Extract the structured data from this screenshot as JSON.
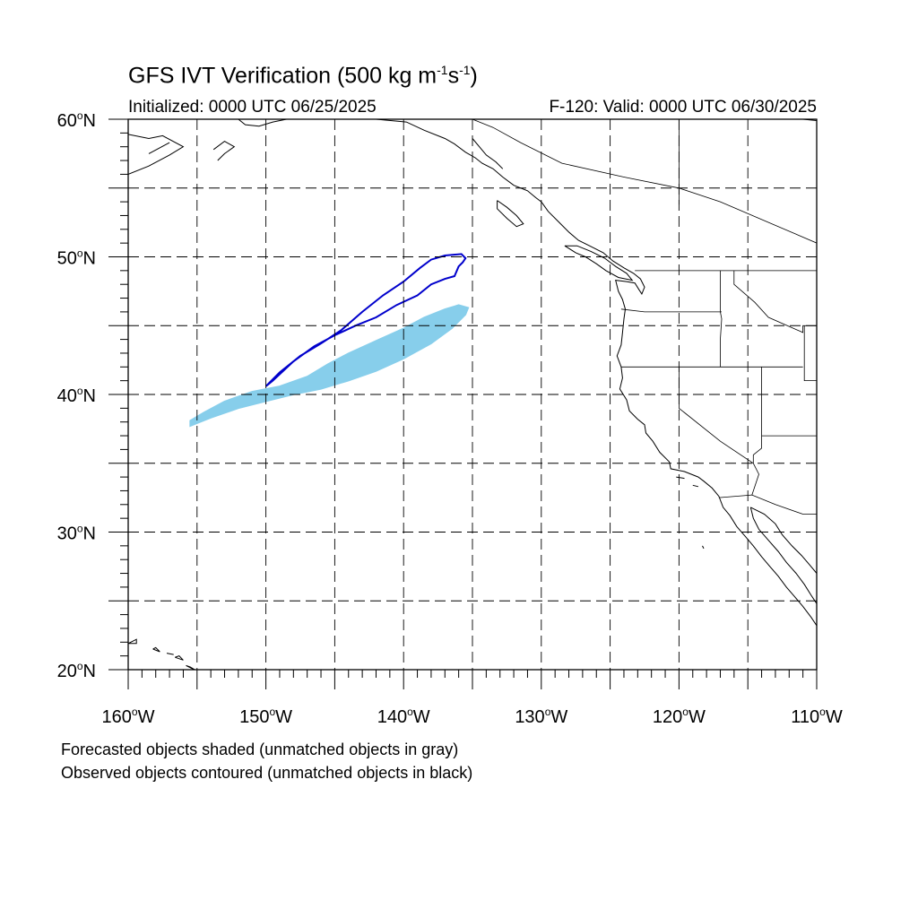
{
  "header": {
    "title_main": "GFS IVT Verification (500 kg m",
    "title_sup1": "-1",
    "title_mid": "s",
    "title_sup2": "-1",
    "title_end": ")",
    "initialized": "Initialized: 0000 UTC 06/25/2025",
    "valid": "F-120: Valid: 0000 UTC 06/30/2025"
  },
  "map": {
    "lon_range": [
      -160,
      -110
    ],
    "lat_range": [
      20,
      60
    ],
    "grid_interval_deg": 5,
    "lat_labels": [
      {
        "lat": 60,
        "text": "60",
        "hemi": "N"
      },
      {
        "lat": 50,
        "text": "50",
        "hemi": "N"
      },
      {
        "lat": 40,
        "text": "40",
        "hemi": "N"
      },
      {
        "lat": 30,
        "text": "30",
        "hemi": "N"
      },
      {
        "lat": 20,
        "text": "20",
        "hemi": "N"
      }
    ],
    "lon_labels": [
      {
        "lon": -160,
        "text": "160",
        "hemi": "W"
      },
      {
        "lon": -150,
        "text": "150",
        "hemi": "W"
      },
      {
        "lon": -140,
        "text": "140",
        "hemi": "W"
      },
      {
        "lon": -130,
        "text": "130",
        "hemi": "W"
      },
      {
        "lon": -120,
        "text": "120",
        "hemi": "W"
      },
      {
        "lon": -110,
        "text": "110",
        "hemi": "W"
      }
    ],
    "colors": {
      "forecast_shade": "#87ceeb",
      "observed_contour": "#0000cc",
      "coast": "#000000",
      "grid": "#000000"
    },
    "forecast_object": [
      [
        -155.5,
        37.7
      ],
      [
        -155.0,
        37.9
      ],
      [
        -154.0,
        38.3
      ],
      [
        -152.0,
        39.0
      ],
      [
        -150.0,
        39.5
      ],
      [
        -148.0,
        40.0
      ],
      [
        -146.0,
        40.4
      ],
      [
        -144.0,
        41.0
      ],
      [
        -142.0,
        41.7
      ],
      [
        -140.0,
        42.6
      ],
      [
        -138.0,
        43.7
      ],
      [
        -136.5,
        44.8
      ],
      [
        -135.5,
        45.8
      ],
      [
        -135.3,
        46.3
      ],
      [
        -136.0,
        46.5
      ],
      [
        -137.0,
        46.2
      ],
      [
        -138.5,
        45.6
      ],
      [
        -140.0,
        44.8
      ],
      [
        -142.0,
        43.9
      ],
      [
        -144.0,
        43.0
      ],
      [
        -145.5,
        42.2
      ],
      [
        -147.0,
        41.3
      ],
      [
        -149.0,
        40.6
      ],
      [
        -151.0,
        40.2
      ],
      [
        -153.0,
        39.5
      ],
      [
        -154.5,
        38.7
      ],
      [
        -155.5,
        38.1
      ]
    ],
    "observed_object": [
      [
        -150.0,
        40.6
      ],
      [
        -149.0,
        41.6
      ],
      [
        -147.5,
        42.8
      ],
      [
        -146.0,
        43.7
      ],
      [
        -144.5,
        44.7
      ],
      [
        -143.0,
        46.0
      ],
      [
        -141.5,
        47.2
      ],
      [
        -140.0,
        48.2
      ],
      [
        -138.8,
        49.2
      ],
      [
        -138.0,
        49.8
      ],
      [
        -137.0,
        50.1
      ],
      [
        -135.8,
        50.2
      ],
      [
        -135.5,
        49.9
      ],
      [
        -135.7,
        49.6
      ],
      [
        -136.0,
        49.3
      ],
      [
        -136.3,
        48.6
      ],
      [
        -137.0,
        48.4
      ],
      [
        -138.0,
        48.0
      ],
      [
        -139.0,
        47.2
      ],
      [
        -140.5,
        46.5
      ],
      [
        -142.0,
        45.6
      ],
      [
        -143.5,
        45.0
      ],
      [
        -145.0,
        44.3
      ],
      [
        -146.5,
        43.5
      ],
      [
        -148.0,
        42.4
      ],
      [
        -149.5,
        41.0
      ]
    ],
    "coastlines": [
      [
        [
          -160,
          56.0
        ],
        [
          -158.5,
          56.6
        ],
        [
          -157.0,
          57.4
        ],
        [
          -156.0,
          58.0
        ],
        [
          -157.5,
          58.8
        ],
        [
          -158.5,
          58.6
        ],
        [
          -160,
          58.9
        ]
      ],
      [
        [
          -158.5,
          57.5
        ],
        [
          -157.0,
          58.3
        ]
      ],
      [
        [
          -153.5,
          57.0
        ],
        [
          -153.0,
          57.5
        ],
        [
          -152.3,
          58.0
        ],
        [
          -153.0,
          58.4
        ],
        [
          -153.8,
          57.8
        ]
      ],
      [
        [
          -152.0,
          60.0
        ],
        [
          -151.5,
          59.6
        ],
        [
          -150.5,
          59.5
        ],
        [
          -149.5,
          59.8
        ],
        [
          -148.5,
          60.0
        ]
      ],
      [
        [
          -146.5,
          60.0
        ],
        [
          -144.5,
          60.0
        ],
        [
          -142.0,
          60.0
        ],
        [
          -139.8,
          59.8
        ],
        [
          -138.5,
          59.2
        ],
        [
          -137.0,
          58.6
        ],
        [
          -136.3,
          58.2
        ],
        [
          -135.5,
          57.6
        ],
        [
          -134.8,
          57.2
        ],
        [
          -134.3,
          56.8
        ],
        [
          -133.5,
          56.4
        ],
        [
          -132.8,
          55.8
        ],
        [
          -132.0,
          55.2
        ],
        [
          -131.0,
          54.8
        ],
        [
          -130.4,
          54.3
        ],
        [
          -130.0,
          54.0
        ]
      ],
      [
        [
          -135.0,
          58.6
        ],
        [
          -134.5,
          58.0
        ],
        [
          -134.0,
          57.4
        ],
        [
          -133.3,
          56.9
        ],
        [
          -132.8,
          56.4
        ]
      ],
      [
        [
          -133.2,
          54.1
        ],
        [
          -132.5,
          53.6
        ],
        [
          -131.8,
          53.0
        ],
        [
          -131.3,
          52.4
        ],
        [
          -131.8,
          52.2
        ],
        [
          -132.5,
          52.8
        ],
        [
          -133.2,
          53.5
        ],
        [
          -133.2,
          54.1
        ]
      ],
      [
        [
          -130.0,
          54.0
        ],
        [
          -129.5,
          53.3
        ],
        [
          -128.7,
          52.5
        ],
        [
          -128.0,
          51.8
        ],
        [
          -127.3,
          51.2
        ],
        [
          -126.5,
          50.8
        ],
        [
          -125.5,
          50.3
        ],
        [
          -124.8,
          49.7
        ],
        [
          -124.0,
          49.2
        ],
        [
          -123.3,
          48.8
        ],
        [
          -122.8,
          48.4
        ],
        [
          -122.5,
          47.8
        ],
        [
          -122.7,
          47.3
        ],
        [
          -122.9,
          47.6
        ],
        [
          -123.2,
          48.1
        ],
        [
          -123.8,
          48.2
        ],
        [
          -124.6,
          48.3
        ],
        [
          -124.4,
          47.5
        ],
        [
          -124.1,
          46.9
        ],
        [
          -123.9,
          46.2
        ],
        [
          -124.0,
          45.5
        ],
        [
          -124.1,
          44.5
        ],
        [
          -124.2,
          43.6
        ],
        [
          -124.5,
          42.8
        ],
        [
          -124.2,
          42.0
        ],
        [
          -124.1,
          41.2
        ],
        [
          -124.3,
          40.4
        ],
        [
          -123.8,
          39.6
        ],
        [
          -123.6,
          38.8
        ],
        [
          -123.0,
          38.2
        ],
        [
          -122.5,
          37.8
        ],
        [
          -122.4,
          37.2
        ],
        [
          -121.9,
          36.6
        ],
        [
          -121.4,
          35.8
        ],
        [
          -120.7,
          35.1
        ],
        [
          -120.6,
          34.6
        ],
        [
          -119.6,
          34.4
        ],
        [
          -118.6,
          34.0
        ],
        [
          -118.2,
          33.7
        ],
        [
          -117.6,
          33.2
        ],
        [
          -117.1,
          32.6
        ],
        [
          -116.8,
          31.8
        ],
        [
          -116.3,
          31.2
        ],
        [
          -115.8,
          30.4
        ],
        [
          -115.2,
          29.7
        ],
        [
          -114.6,
          29.0
        ],
        [
          -114.0,
          28.2
        ],
        [
          -113.4,
          27.5
        ],
        [
          -112.8,
          26.8
        ],
        [
          -112.2,
          26.0
        ],
        [
          -111.6,
          25.3
        ],
        [
          -111.0,
          24.6
        ],
        [
          -110.4,
          23.8
        ],
        [
          -110,
          23.2
        ]
      ],
      [
        [
          -128.3,
          50.8
        ],
        [
          -127.5,
          50.3
        ],
        [
          -126.8,
          50.0
        ],
        [
          -126.0,
          49.5
        ],
        [
          -125.3,
          49.0
        ],
        [
          -124.4,
          48.5
        ],
        [
          -123.4,
          48.3
        ],
        [
          -123.8,
          48.8
        ],
        [
          -124.6,
          49.3
        ],
        [
          -125.4,
          49.9
        ],
        [
          -126.4,
          50.4
        ],
        [
          -127.4,
          50.8
        ],
        [
          -128.3,
          50.8
        ]
      ],
      [
        [
          -114.8,
          31.8
        ],
        [
          -114.6,
          31.0
        ],
        [
          -114.2,
          30.2
        ],
        [
          -113.5,
          29.4
        ],
        [
          -112.8,
          28.6
        ],
        [
          -112.2,
          27.8
        ],
        [
          -111.5,
          27.0
        ],
        [
          -110.9,
          26.2
        ],
        [
          -110.4,
          25.4
        ],
        [
          -110,
          24.8
        ]
      ],
      [
        [
          -110,
          27.0
        ],
        [
          -110.5,
          27.6
        ],
        [
          -111.1,
          28.3
        ],
        [
          -111.8,
          29.0
        ],
        [
          -112.5,
          29.8
        ],
        [
          -113.0,
          30.6
        ],
        [
          -113.8,
          31.3
        ],
        [
          -114.8,
          31.8
        ]
      ],
      [
        [
          -110,
          59.9
        ],
        [
          -111.0,
          60.0
        ]
      ],
      [
        [
          -119.0,
          33.4
        ],
        [
          -118.6,
          33.3
        ]
      ],
      [
        [
          -120.2,
          34.0
        ],
        [
          -119.6,
          33.9
        ]
      ],
      [
        [
          -118.3,
          29.0
        ],
        [
          -118.2,
          28.8
        ]
      ],
      [
        [
          -160,
          21.9
        ],
        [
          -159.4,
          22.2
        ],
        [
          -159.4,
          21.9
        ],
        [
          -160,
          21.9
        ]
      ],
      [
        [
          -158.2,
          21.5
        ],
        [
          -157.7,
          21.3
        ],
        [
          -158.0,
          21.6
        ],
        [
          -158.2,
          21.5
        ]
      ],
      [
        [
          -157.2,
          21.2
        ],
        [
          -156.7,
          21.1
        ]
      ],
      [
        [
          -156.6,
          20.9
        ],
        [
          -156.0,
          20.7
        ],
        [
          -156.3,
          21.0
        ],
        [
          -156.6,
          20.9
        ]
      ],
      [
        [
          -155.8,
          20.3
        ],
        [
          -155.0,
          19.9
        ],
        [
          -155.5,
          20.2
        ],
        [
          -155.8,
          20.3
        ]
      ]
    ],
    "borders": [
      [
        [
          -123.2,
          49.0
        ],
        [
          -110,
          49.0
        ]
      ],
      [
        [
          -124.2,
          46.2
        ],
        [
          -122.5,
          46.0
        ],
        [
          -120.0,
          46.0
        ],
        [
          -118.5,
          46.0
        ],
        [
          -116.9,
          46.0
        ]
      ],
      [
        [
          -124.2,
          42.0
        ],
        [
          -111.0,
          42.0
        ]
      ],
      [
        [
          -117.0,
          49.0
        ],
        [
          -117.0,
          46.0
        ],
        [
          -116.9,
          45.5
        ],
        [
          -117.0,
          44.0
        ],
        [
          -117.0,
          42.0
        ]
      ],
      [
        [
          -116.0,
          49.0
        ],
        [
          -116.0,
          48.0
        ],
        [
          -114.5,
          46.7
        ],
        [
          -113.5,
          45.6
        ],
        [
          -111.0,
          44.5
        ],
        [
          -111.0,
          45.0
        ],
        [
          -110,
          45.0
        ]
      ],
      [
        [
          -110.9,
          45.0
        ],
        [
          -110.9,
          41.0
        ],
        [
          -110,
          41.0
        ]
      ],
      [
        [
          -120.0,
          42.0
        ],
        [
          -120.0,
          39.0
        ],
        [
          -117.0,
          36.6
        ],
        [
          -114.6,
          35.0
        ]
      ],
      [
        [
          -114.0,
          42.0
        ],
        [
          -114.0,
          37.0
        ],
        [
          -110,
          37.0
        ]
      ],
      [
        [
          -114.0,
          37.0
        ],
        [
          -114.0,
          36.1
        ],
        [
          -114.6,
          35.6
        ],
        [
          -114.6,
          35.0
        ],
        [
          -114.2,
          34.2
        ],
        [
          -114.7,
          32.7
        ]
      ],
      [
        [
          -117.1,
          32.5
        ],
        [
          -114.7,
          32.7
        ],
        [
          -113.0,
          32.0
        ],
        [
          -111.0,
          31.3
        ],
        [
          -110,
          31.3
        ]
      ],
      [
        [
          -110,
          51.0
        ],
        [
          -117.0,
          54.0
        ],
        [
          -120.0,
          55.0
        ],
        [
          -124.0,
          55.8
        ],
        [
          -128.5,
          56.8
        ],
        [
          -131.5,
          58.3
        ],
        [
          -133.5,
          59.4
        ],
        [
          -135.0,
          60.0
        ]
      ],
      [
        [
          -120.0,
          53.8
        ],
        [
          -120.0,
          60.0
        ]
      ],
      [
        [
          -110,
          60.0
        ],
        [
          -110,
          49.0
        ]
      ]
    ]
  },
  "footer": {
    "line1": "Forecasted objects shaded (unmatched objects in gray)",
    "line2": "Observed objects contoured (unmatched objects in black)"
  }
}
